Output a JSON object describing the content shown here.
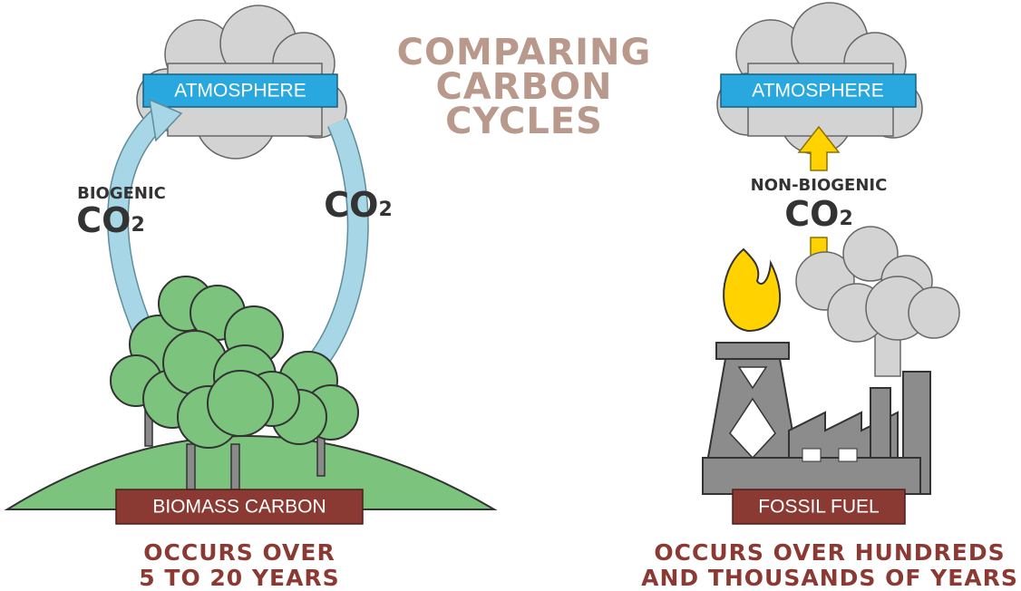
{
  "title": {
    "lines": [
      "COMPARING",
      "CARBON",
      "CYCLES"
    ]
  },
  "biogenic": {
    "atmosphere": "ATMOSPHERE",
    "left_label": "BIOGENIC",
    "left_co2": {
      "main": "CO",
      "sub": "2"
    },
    "right_co2": {
      "main": "CO",
      "sub": "2"
    },
    "source": "BIOMASS CARBON",
    "timescale": [
      "OCCURS OVER",
      "5 TO 20 YEARS"
    ]
  },
  "fossil": {
    "atmosphere": "ATMOSPHERE",
    "label": "NON-BIOGENIC",
    "co2": {
      "main": "CO",
      "sub": "2"
    },
    "source": "FOSSIL FUEL",
    "timescale": [
      "OCCURS OVER HUNDREDS",
      "AND THOUSANDS OF YEARS"
    ]
  }
}
